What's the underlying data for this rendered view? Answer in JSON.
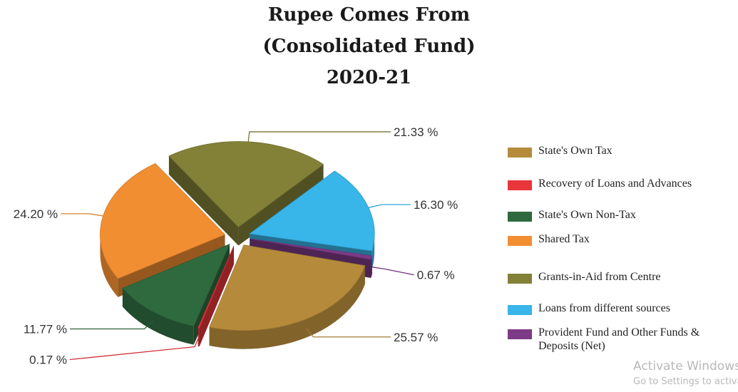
{
  "title_lines": [
    "Rupee Comes From",
    "(Consolidated Fund)",
    "2020-21"
  ],
  "chart_data": {
    "type": "pie",
    "title": "Rupee Comes From (Consolidated Fund) 2020-21",
    "unit": "%",
    "legend_position": "right",
    "three_d": true,
    "exploded": true,
    "slices": [
      {
        "name": "State's Own Tax",
        "value": 25.57,
        "label": "25.57 %",
        "color": "#b58b3b"
      },
      {
        "name": "Recovery of Loans and Advances",
        "value": 0.17,
        "label": "0.17 %",
        "color": "#e8363b"
      },
      {
        "name": "State's Own Non-Tax",
        "value": 11.77,
        "label": "11.77 %",
        "color": "#2e6a3e"
      },
      {
        "name": "Shared Tax",
        "value": 24.2,
        "label": "24.20 %",
        "color": "#f28e32"
      },
      {
        "name": "Grants-in-Aid from Centre",
        "value": 21.33,
        "label": "21.33 %",
        "color": "#838138"
      },
      {
        "name": "Loans from different sources",
        "value": 16.3,
        "label": "16.30 %",
        "color": "#38b5e9"
      },
      {
        "name": "Provident Fund and Other Funds & Deposits (Net)",
        "value": 0.67,
        "label": "0.67 %",
        "color": "#7d3a86"
      }
    ]
  },
  "watermark": {
    "line1": "Activate Windows",
    "line2": "Go to Settings to activate Windows."
  }
}
